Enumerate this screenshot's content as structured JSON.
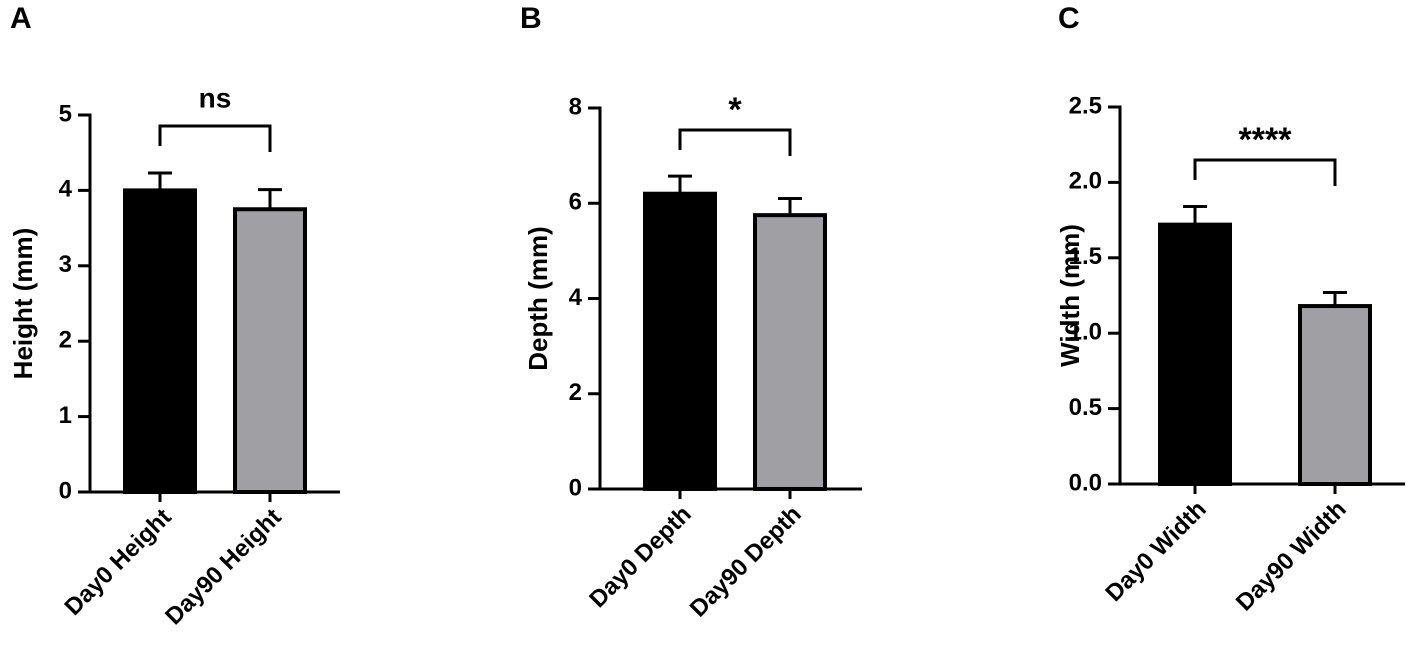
{
  "chart_data": [
    {
      "type": "bar",
      "panel": "A",
      "ylabel": "Height (mm)",
      "categories": [
        "Day0 Height",
        "Day90 Height"
      ],
      "values": [
        4.0,
        3.75
      ],
      "errors": [
        0.23,
        0.26
      ],
      "colors": [
        "#000000",
        "#a0a0a4"
      ],
      "ylim": [
        0,
        5
      ],
      "yticks": [
        0,
        1,
        2,
        3,
        4,
        5
      ],
      "annotation": "ns"
    },
    {
      "type": "bar",
      "panel": "B",
      "ylabel": "Depth (mm)",
      "categories": [
        "Day0 Depth",
        "Day90 Depth"
      ],
      "values": [
        6.2,
        5.75
      ],
      "errors": [
        0.37,
        0.35
      ],
      "colors": [
        "#000000",
        "#a0a0a4"
      ],
      "ylim": [
        0,
        8
      ],
      "yticks": [
        0,
        2,
        4,
        6,
        8
      ],
      "annotation": "*"
    },
    {
      "type": "bar",
      "panel": "C",
      "ylabel": "Width (mm)",
      "categories": [
        "Day0 Width",
        "Day90 Width"
      ],
      "values": [
        1.72,
        1.18
      ],
      "errors": [
        0.12,
        0.09
      ],
      "colors": [
        "#000000",
        "#a0a0a4"
      ],
      "ylim": [
        0,
        2.5
      ],
      "yticks": [
        {
          "value": 0,
          "label": "0.0"
        },
        0.5,
        {
          "value": 1,
          "label": "1.0"
        },
        1.5,
        {
          "value": 2,
          "label": "2.0"
        },
        2.5
      ],
      "annotation": "****"
    }
  ]
}
